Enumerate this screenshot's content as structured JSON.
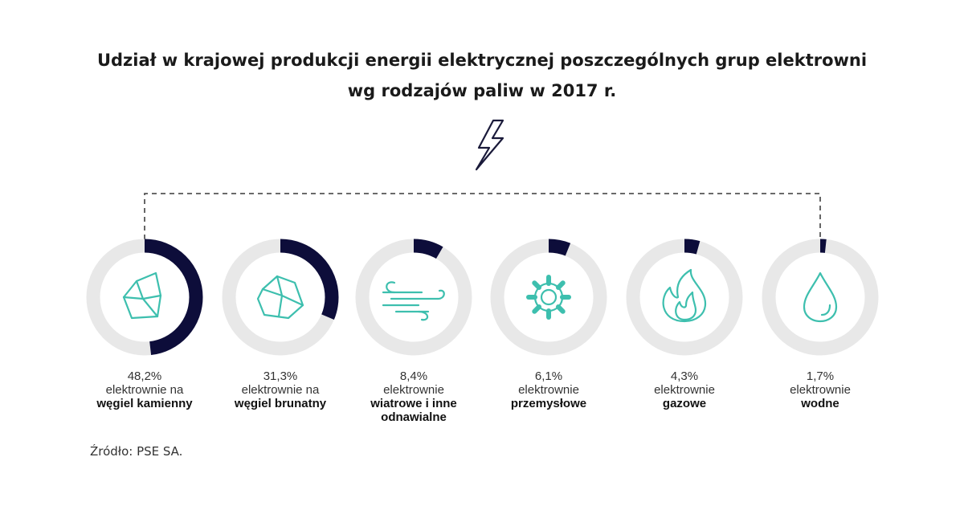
{
  "title_line1": "Udział w krajowej produkcji energii elektrycznej poszczególnych grup elektrowni",
  "title_line2": "wg rodzajów paliw w 2017 r.",
  "source": "Źródło: PSE SA.",
  "colors": {
    "track": "#e8e8e8",
    "fill": "#0d0d3a",
    "icon": "#3dbfae"
  },
  "chart_data": {
    "type": "donut",
    "title": "Udział w krajowej produkcji energii elektrycznej poszczególnych grup elektrowni wg rodzajów paliw w 2017 r.",
    "unit": "%",
    "items": [
      {
        "value": 48.2,
        "value_label": "48,2%",
        "label_line1": "elektrownie na",
        "label_line2": "węgiel kamienny",
        "label_line3": "",
        "icon": "coal-icon"
      },
      {
        "value": 31.3,
        "value_label": "31,3%",
        "label_line1": "elektrownie na",
        "label_line2": "węgiel brunatny",
        "label_line3": "",
        "icon": "lignite-icon"
      },
      {
        "value": 8.4,
        "value_label": "8,4%",
        "label_line1": "elektrownie",
        "label_line2": "wiatrowe i inne",
        "label_line3": "odnawialne",
        "icon": "wind-icon"
      },
      {
        "value": 6.1,
        "value_label": "6,1%",
        "label_line1": "elektrownie",
        "label_line2": "przemysłowe",
        "label_line3": "",
        "icon": "gear-icon"
      },
      {
        "value": 4.3,
        "value_label": "4,3%",
        "label_line1": "elektrownie",
        "label_line2": "gazowe",
        "label_line3": "",
        "icon": "flame-icon"
      },
      {
        "value": 1.7,
        "value_label": "1,7%",
        "label_line1": "elektrownie",
        "label_line2": "wodne",
        "label_line3": "",
        "icon": "water-drop-icon"
      }
    ]
  }
}
